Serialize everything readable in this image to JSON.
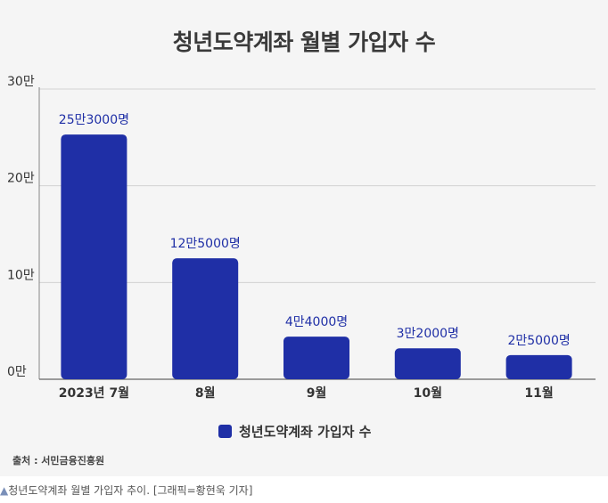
{
  "title": "청년도약계좌 월별 가입자 수",
  "chart_data": {
    "type": "bar",
    "title": "청년도약계좌 월별 가입자 수",
    "categories": [
      "2023년 7월",
      "8월",
      "9월",
      "10월",
      "11월"
    ],
    "series": [
      {
        "name": "청년도약계좌 가입자 수",
        "values": [
          253000,
          125000,
          44000,
          32000,
          25000
        ],
        "labels": [
          "25만3000명",
          "12만5000명",
          "4만4000명",
          "3만2000명",
          "2만5000명"
        ]
      }
    ],
    "yticks": [
      {
        "value": 0,
        "label": "0만"
      },
      {
        "value": 100000,
        "label": "10만"
      },
      {
        "value": 200000,
        "label": "20만"
      },
      {
        "value": 300000,
        "label": "30만"
      }
    ],
    "ylim": [
      0,
      300000
    ],
    "grid": true,
    "legend_position": "bottom-center",
    "bar_color": "#1f2fa6",
    "label_color": "#1f2fa6"
  },
  "legend": {
    "label": "청년도약계좌 가입자 수",
    "color": "#1f2fa6"
  },
  "source": "출처 : 서민금융진흥원",
  "caption": {
    "mark": "▲",
    "text": "청년도약계좌 월별 가입자 추이. [그래픽=황현욱 기자]"
  }
}
